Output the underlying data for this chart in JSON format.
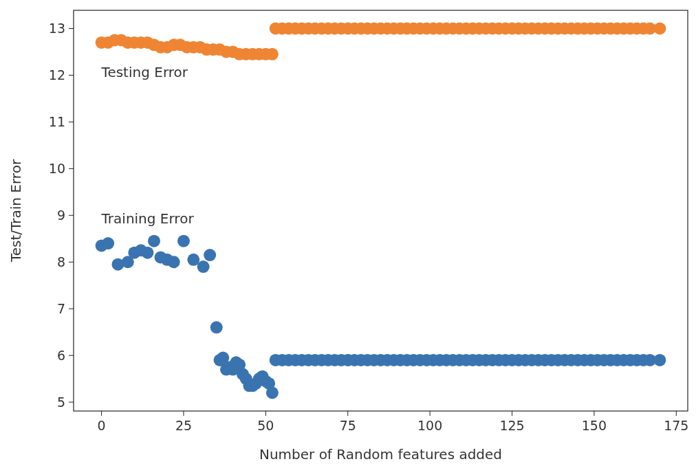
{
  "chart_data": {
    "type": "scatter",
    "xlabel": "Number of Random features added",
    "ylabel": "Test/Train Error",
    "xlim": [
      -8.5,
      178.5
    ],
    "xticks": [
      0,
      25,
      50,
      75,
      100,
      125,
      150,
      175
    ],
    "ylim": [
      4.81,
      13.39
    ],
    "yticks": [
      5,
      6,
      7,
      8,
      9,
      10,
      11,
      12,
      13
    ],
    "grid": false,
    "legend": false,
    "marker": "circle",
    "series": [
      {
        "name": "Testing Error",
        "color": "#ef8533",
        "x": [
          0,
          2,
          4,
          6,
          8,
          10,
          12,
          14,
          16,
          18,
          20,
          22,
          24,
          26,
          28,
          30,
          32,
          34,
          36,
          38,
          40,
          42,
          44,
          46,
          48,
          50,
          52,
          53,
          55,
          57,
          59,
          61,
          63,
          65,
          67,
          69,
          71,
          73,
          75,
          77,
          79,
          81,
          83,
          85,
          87,
          89,
          91,
          93,
          95,
          97,
          99,
          101,
          103,
          105,
          107,
          109,
          111,
          113,
          115,
          117,
          119,
          121,
          123,
          125,
          127,
          129,
          131,
          133,
          135,
          137,
          139,
          141,
          143,
          145,
          147,
          149,
          151,
          153,
          155,
          157,
          159,
          161,
          163,
          165,
          167,
          170
        ],
        "values": [
          12.7,
          12.7,
          12.75,
          12.75,
          12.7,
          12.7,
          12.7,
          12.7,
          12.65,
          12.6,
          12.6,
          12.65,
          12.65,
          12.6,
          12.6,
          12.6,
          12.55,
          12.55,
          12.55,
          12.5,
          12.5,
          12.45,
          12.45,
          12.45,
          12.45,
          12.45,
          12.45,
          13,
          13,
          13,
          13,
          13,
          13,
          13,
          13,
          13,
          13,
          13,
          13,
          13,
          13,
          13,
          13,
          13,
          13,
          13,
          13,
          13,
          13,
          13,
          13,
          13,
          13,
          13,
          13,
          13,
          13,
          13,
          13,
          13,
          13,
          13,
          13,
          13,
          13,
          13,
          13,
          13,
          13,
          13,
          13,
          13,
          13,
          13,
          13,
          13,
          13,
          13,
          13,
          13,
          13,
          13,
          13,
          13,
          13,
          13
        ]
      },
      {
        "name": "Training Error",
        "color": "#3a74b0",
        "x": [
          0,
          2,
          5,
          8,
          10,
          12,
          14,
          16,
          18,
          20,
          22,
          25,
          28,
          31,
          33,
          35,
          36,
          37,
          38,
          39,
          40,
          41,
          42,
          43,
          44,
          45,
          46,
          47,
          48,
          49,
          50,
          51,
          52,
          53,
          55,
          57,
          59,
          61,
          63,
          65,
          67,
          69,
          71,
          73,
          75,
          77,
          79,
          81,
          83,
          85,
          87,
          89,
          91,
          93,
          95,
          97,
          99,
          101,
          103,
          105,
          107,
          109,
          111,
          113,
          115,
          117,
          119,
          121,
          123,
          125,
          127,
          129,
          131,
          133,
          135,
          137,
          139,
          141,
          143,
          145,
          147,
          149,
          151,
          153,
          155,
          157,
          159,
          161,
          163,
          165,
          167,
          170
        ],
        "values": [
          8.35,
          8.4,
          7.95,
          8.0,
          8.2,
          8.25,
          8.2,
          8.45,
          8.1,
          8.05,
          8.0,
          8.45,
          8.05,
          7.9,
          8.15,
          6.6,
          5.9,
          5.95,
          5.7,
          5.75,
          5.7,
          5.85,
          5.8,
          5.6,
          5.5,
          5.35,
          5.35,
          5.4,
          5.5,
          5.55,
          5.45,
          5.4,
          5.2,
          5.9,
          5.9,
          5.9,
          5.9,
          5.9,
          5.9,
          5.9,
          5.9,
          5.9,
          5.9,
          5.9,
          5.9,
          5.9,
          5.9,
          5.9,
          5.9,
          5.9,
          5.9,
          5.9,
          5.9,
          5.9,
          5.9,
          5.9,
          5.9,
          5.9,
          5.9,
          5.9,
          5.9,
          5.9,
          5.9,
          5.9,
          5.9,
          5.9,
          5.9,
          5.9,
          5.9,
          5.9,
          5.9,
          5.9,
          5.9,
          5.9,
          5.9,
          5.9,
          5.9,
          5.9,
          5.9,
          5.9,
          5.9,
          5.9,
          5.9,
          5.9,
          5.9,
          5.9,
          5.9,
          5.9,
          5.9,
          5.9,
          5.9,
          5.9
        ]
      }
    ]
  }
}
